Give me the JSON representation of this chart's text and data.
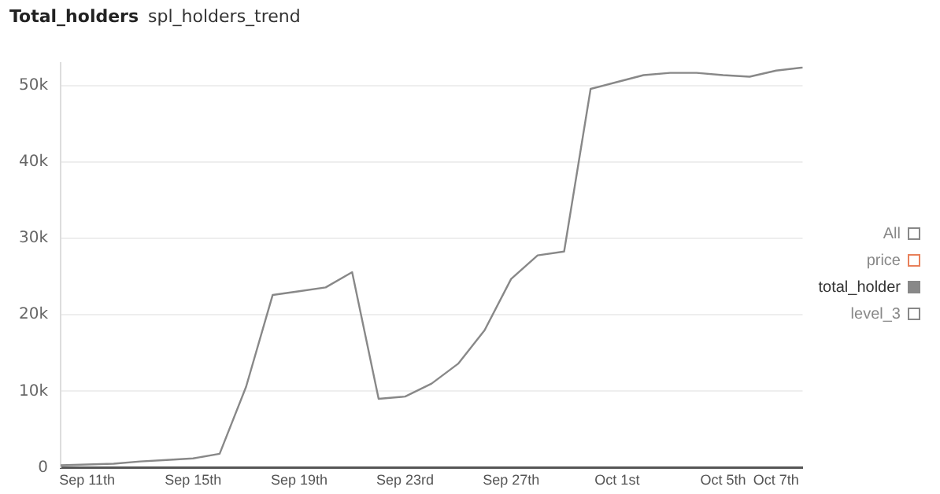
{
  "chart_data": {
    "type": "line",
    "title": "Total_holders",
    "subtitle": "spl_holders_trend",
    "categories": [
      null,
      "Sep 11th",
      null,
      null,
      null,
      "Sep 15th",
      null,
      null,
      null,
      "Sep 19th",
      null,
      null,
      null,
      "Sep 23rd",
      null,
      null,
      null,
      "Sep 27th",
      null,
      null,
      null,
      "Oct 1st",
      null,
      null,
      null,
      "Oct 5th",
      null,
      "Oct 7th",
      null
    ],
    "series": [
      {
        "name": "All",
        "color": "#888888",
        "values": [
          null,
          null,
          null,
          null,
          null,
          null,
          null,
          null,
          null,
          null,
          null,
          null,
          null,
          null,
          null,
          null,
          null,
          null,
          null,
          null,
          null,
          null,
          null,
          null,
          null,
          null,
          null,
          null,
          null
        ]
      },
      {
        "name": "price",
        "color": "#e8805a",
        "values": [
          null,
          null,
          null,
          null,
          null,
          null,
          null,
          null,
          null,
          null,
          null,
          null,
          null,
          null,
          null,
          null,
          null,
          null,
          null,
          null,
          null,
          null,
          null,
          null,
          null,
          null,
          null,
          null,
          null
        ]
      },
      {
        "name": "total_holder",
        "color": "#888888",
        "values": [
          300,
          400,
          500,
          800,
          1000,
          1200,
          1800,
          10600,
          22600,
          23100,
          23600,
          25600,
          9000,
          9300,
          11000,
          13600,
          18000,
          24700,
          27800,
          28300,
          49600,
          50500,
          51400,
          51700,
          51700,
          51400,
          51200,
          52000,
          52400
        ]
      },
      {
        "name": "level_3",
        "color": "#888888",
        "values": [
          null,
          null,
          null,
          null,
          null,
          null,
          null,
          null,
          null,
          null,
          null,
          null,
          null,
          null,
          null,
          null,
          null,
          null,
          null,
          null,
          null,
          null,
          null,
          null,
          null,
          null,
          null,
          null,
          null
        ]
      }
    ],
    "ylim": [
      0,
      53000
    ],
    "yticks": [
      0,
      {
        "value": 10000,
        "label": "10k"
      },
      {
        "value": 20000,
        "label": "20k"
      },
      {
        "value": 30000,
        "label": "30k"
      },
      {
        "value": 40000,
        "label": "40k"
      },
      {
        "value": 50000,
        "label": "50k"
      }
    ],
    "grid": "y",
    "legend": "right",
    "marker": "none",
    "line_style": "solid"
  }
}
